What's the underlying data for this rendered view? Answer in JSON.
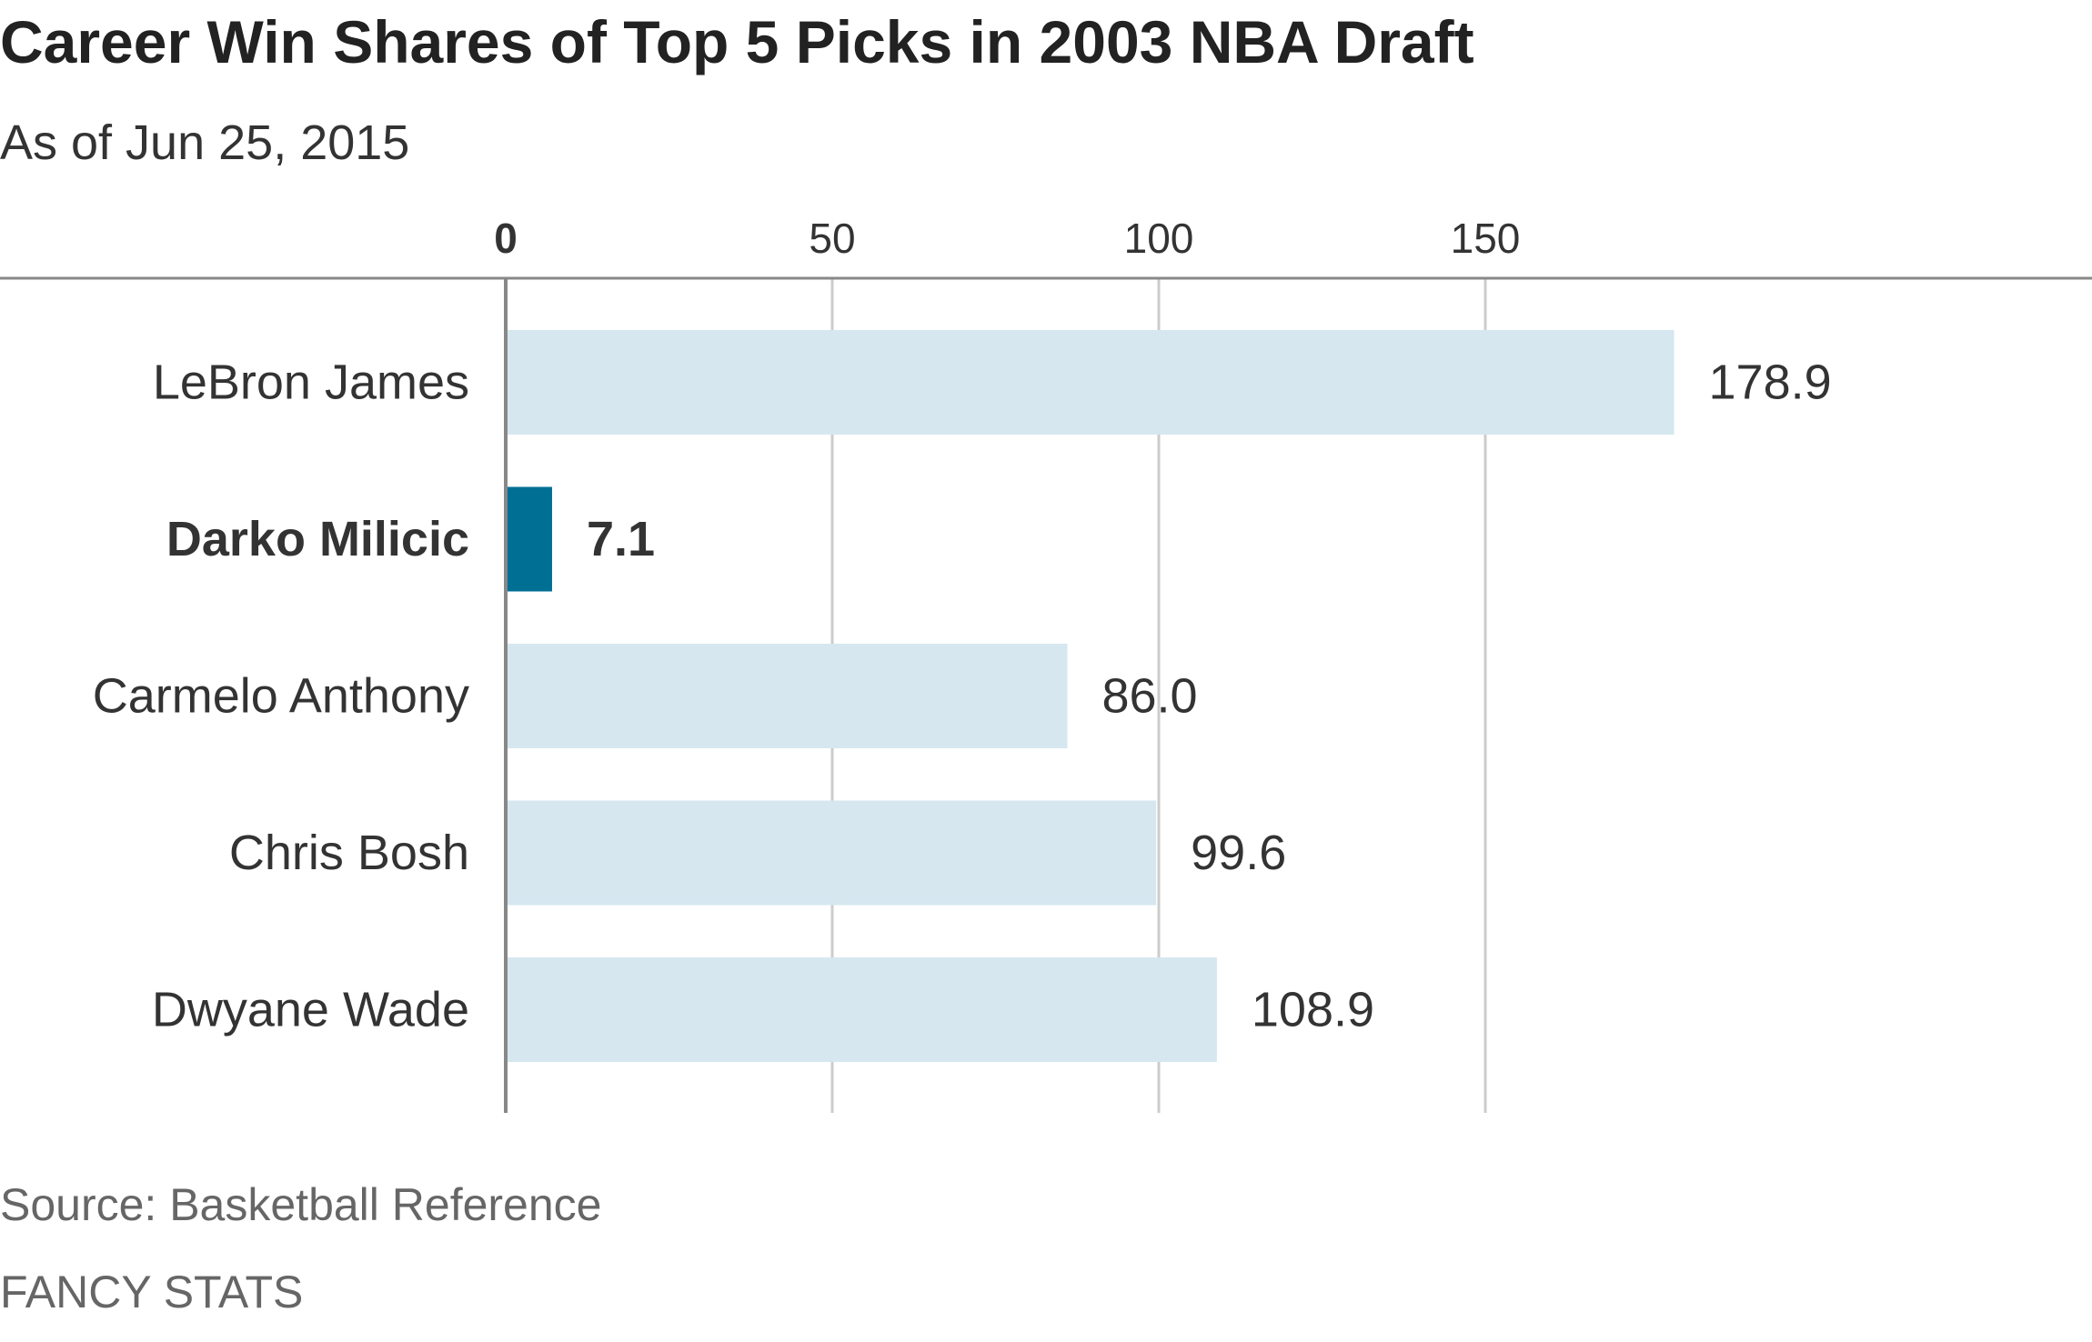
{
  "chart_data": {
    "type": "bar",
    "orientation": "horizontal",
    "title": "Career Win Shares of Top 5 Picks in 2003 NBA Draft",
    "subtitle": "As of Jun 25, 2015",
    "categories": [
      "LeBron James",
      "Darko Milicic",
      "Carmelo Anthony",
      "Chris Bosh",
      "Dwyane Wade"
    ],
    "values": [
      178.9,
      7.1,
      86.0,
      99.6,
      108.9
    ],
    "value_labels": [
      "178.9",
      "7.1",
      "86.0",
      "99.6",
      "108.9"
    ],
    "highlighted": "Darko Milicic",
    "xticks": [
      0,
      50,
      100,
      150
    ],
    "xtick_labels": [
      "0",
      "50",
      "100",
      "150"
    ],
    "xlim": [
      0,
      180
    ],
    "grid": true,
    "xlabel": "",
    "ylabel": "",
    "colors": {
      "default": "#d6e7f0",
      "highlight": "#006f94",
      "grid": "#cccccc",
      "axis": "#888888"
    }
  },
  "footer": {
    "source": "Source: Basketball Reference",
    "credit": "FANCY STATS"
  }
}
